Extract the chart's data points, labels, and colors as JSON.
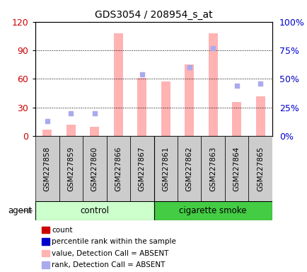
{
  "title": "GDS3054 / 208954_s_at",
  "samples": [
    "GSM227858",
    "GSM227859",
    "GSM227860",
    "GSM227866",
    "GSM227867",
    "GSM227861",
    "GSM227862",
    "GSM227863",
    "GSM227864",
    "GSM227865"
  ],
  "absent_value_bars": [
    7,
    12,
    10,
    108,
    61,
    57,
    75,
    108,
    36,
    42
  ],
  "absent_rank_dots": [
    13,
    20,
    20,
    null,
    54,
    null,
    60,
    77,
    44,
    46
  ],
  "left_ylim": [
    0,
    120
  ],
  "right_ylim": [
    0,
    100
  ],
  "left_yticks": [
    0,
    30,
    60,
    90,
    120
  ],
  "right_yticks": [
    0,
    25,
    50,
    75,
    100
  ],
  "left_yticklabels": [
    "0",
    "30",
    "60",
    "90",
    "120"
  ],
  "right_yticklabels": [
    "0%",
    "25%",
    "50%",
    "75%",
    "100%"
  ],
  "bar_color_absent": "#ffb3b3",
  "dot_color_absent_rank": "#aaaaee",
  "group_bg_color_ctrl": "#99ee99",
  "group_bg_color_smoke": "#44cc44",
  "group_light_color": "#ccffcc",
  "agent_label": "agent",
  "legend_items": [
    {
      "color": "#cc0000",
      "label": "count"
    },
    {
      "color": "#0000cc",
      "label": "percentile rank within the sample"
    },
    {
      "color": "#ffb3b3",
      "label": "value, Detection Call = ABSENT"
    },
    {
      "color": "#aaaaee",
      "label": "rank, Detection Call = ABSENT"
    }
  ],
  "tick_label_color_left": "#cc0000",
  "tick_label_color_right": "#0000cc",
  "sample_bg_color": "#cccccc",
  "bar_width": 0.4
}
